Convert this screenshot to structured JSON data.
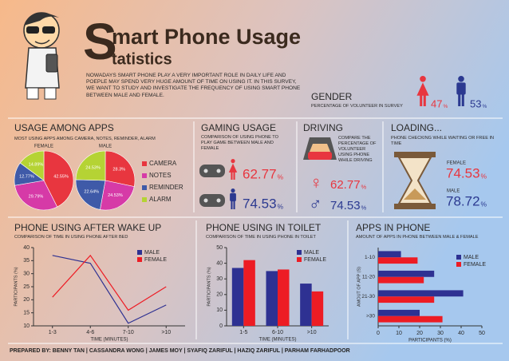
{
  "header": {
    "title_initial": "S",
    "title_line1": "mart Phone Usage",
    "title_line2": "tatistics",
    "intro": "NOWADAYS SMART PHONE PLAY A VERY IMPORTANT ROLE IN DAILY LIFE AND POEPLE MAY SPEND VERY HUGE AMOUNT OF TIME ON USING IT. IN THIS SURVEY, WE WANT TO STUDY AND INVESTIGATE THE FREQUENCY OF USING SMART PHONE BETWEEN MALE AND FEMALE."
  },
  "unit": "%",
  "gender": {
    "title": "GENDER",
    "subtitle": "PERCENTAGE OF VOLUNTEER IN SURVEY",
    "female": 47,
    "male": 53
  },
  "gaming": {
    "title": "GAMING USAGE",
    "subtitle": "COMPARISON OF USING PHONE TO PLAY GAME BETWEEN MALE AND FEMALE",
    "female": 62.77,
    "male": 74.53
  },
  "driving": {
    "title": "DRIVING",
    "subtitle": "COMPARE THE PERCENTAGE OF VOLUNTEER USING PHONE WHILE DRIVING",
    "female": 62.77,
    "male": 74.53
  },
  "loading": {
    "title": "LOADING...",
    "subtitle": "PHONE CHECKING WHILE WAITING OR FREE IN TIME",
    "female_label": "FEMALE",
    "female": 74.53,
    "male_label": "MALE",
    "male": 78.72
  },
  "chart_data": [
    {
      "type": "pie",
      "title": "USAGE AMONG APPS",
      "subtitle": "MOST USING APPS AMONG CAMERA, NOTES, REMINDER, ALARM",
      "categories": [
        "CAMERA",
        "NOTES",
        "REMINDER",
        "ALARM"
      ],
      "colors": [
        "#e8363f",
        "#d63aa7",
        "#3f5aa8",
        "#b5d334"
      ],
      "series": [
        {
          "name": "FEMALE",
          "values": [
            42.55,
            29.79,
            12.77,
            14.89
          ],
          "value_labels": [
            "42.55%",
            "29.79%",
            "12.77%",
            "14.89%"
          ]
        },
        {
          "name": "MALE",
          "values": [
            28.3,
            24.53,
            22.64,
            24.53
          ],
          "value_labels": [
            "28.3%",
            "24.53%",
            "22.64%",
            "24.53%"
          ]
        }
      ]
    },
    {
      "type": "line",
      "title": "PHONE USING AFTER WAKE UP",
      "subtitle": "COMPARISON OF TIME IN USING PHONE AFTER BED",
      "categories": [
        "1-3",
        "4-6",
        "7-10",
        ">10"
      ],
      "x_label": "TIME (MINUTES)",
      "y_label": "PARTICIPANTS (%)",
      "ylim": [
        10,
        40
      ],
      "yticks": [
        10,
        15,
        20,
        25,
        30,
        35,
        40
      ],
      "series": [
        {
          "name": "MALE",
          "color": "#2e3192",
          "values": [
            37,
            34,
            11,
            18
          ]
        },
        {
          "name": "FEMALE",
          "color": "#ed1c24",
          "values": [
            21,
            37,
            16,
            25
          ]
        }
      ]
    },
    {
      "type": "bar",
      "title": "PHONE USING IN TOILET",
      "subtitle": "COMPARISON OF TIME IN USING PHONE IN TOILET",
      "categories": [
        "1-5",
        "6-10",
        ">10"
      ],
      "x_label": "TIME (MINUTES)",
      "y_label": "PARTICIPANTS (%)",
      "ylim": [
        0,
        50
      ],
      "yticks": [
        0,
        10,
        20,
        30,
        40,
        50
      ],
      "series": [
        {
          "name": "MALE",
          "color": "#2e3192",
          "values": [
            37,
            35,
            27
          ]
        },
        {
          "name": "FEMALE",
          "color": "#ed1c24",
          "values": [
            42,
            36,
            22
          ]
        }
      ]
    },
    {
      "type": "bar",
      "horizontal": true,
      "title": "APPS IN PHONE",
      "subtitle": "AMOUNT OF APPS IN PHONE BETWEEN MALE & FEMALE",
      "categories": [
        "1-10",
        "11-20",
        "21-30",
        ">30"
      ],
      "x_label": "PARTICIPANTS (%)",
      "y_label": "AMOUT OF APP (S)",
      "xlim": [
        0,
        50
      ],
      "xticks": [
        0,
        10,
        20,
        30,
        40,
        50
      ],
      "series": [
        {
          "name": "MALE",
          "color": "#2e3192",
          "values": [
            11,
            27,
            41,
            20
          ]
        },
        {
          "name": "FEMALE",
          "color": "#ed1c24",
          "values": [
            19,
            22,
            27,
            31
          ]
        }
      ]
    }
  ],
  "footer": "PREPARED BY: BENNY TAN | CASSANDRA WONG | JAMES MOY | SYAFIQ ZARIFUL | HAZIQ ZARIFUL | PARHAM FARHADPOOR"
}
